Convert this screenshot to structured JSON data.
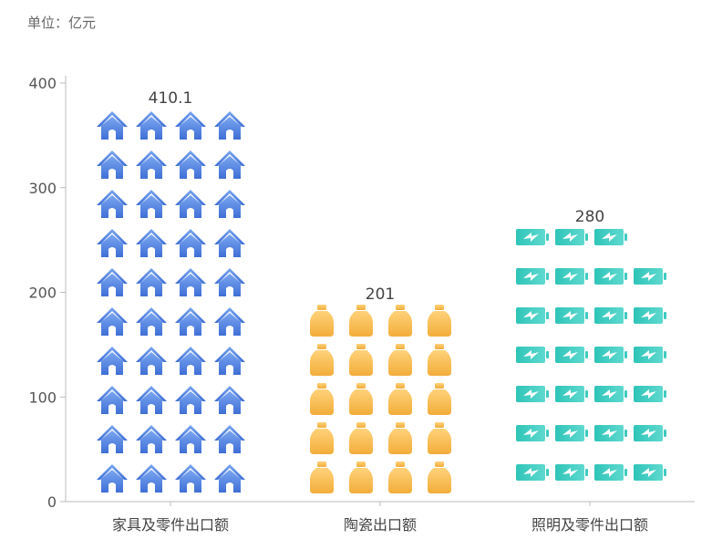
{
  "unit_label": "单位：亿元",
  "chart_data": {
    "type": "bar",
    "title": "",
    "categories": [
      "家具及零件出口额",
      "陶瓷出口额",
      "照明及零件出口额"
    ],
    "values": [
      410.1,
      201,
      280
    ],
    "value_labels": [
      "410.1",
      "201",
      "280"
    ],
    "ylim": [
      0,
      400
    ],
    "yticks": [
      0,
      100,
      200,
      300,
      400
    ],
    "grid": false,
    "icons": [
      "house-icon",
      "jar-icon",
      "battery-icon"
    ],
    "colors": [
      "#5b8fe8",
      "#f5b94a",
      "#3ecbbf"
    ]
  }
}
